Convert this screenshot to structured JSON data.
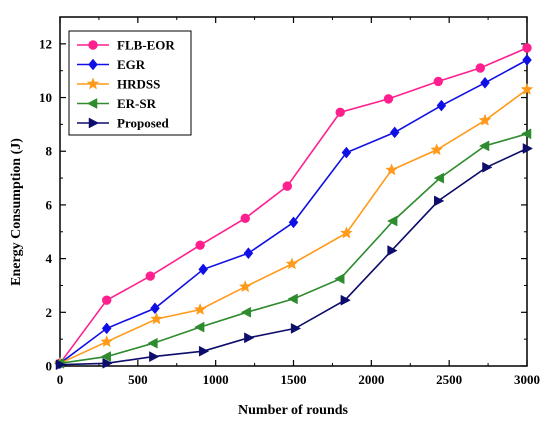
{
  "chart_data": {
    "type": "line",
    "xlabel": "Number of rounds",
    "ylabel": "Energy Consumption (J)",
    "xlim": [
      0,
      3000
    ],
    "ylim": [
      0,
      13
    ],
    "xticks": [
      0,
      500,
      1000,
      1500,
      2000,
      2500,
      3000
    ],
    "yticks": [
      0,
      2,
      4,
      6,
      8,
      10,
      12
    ],
    "grid": false,
    "legend_position": "top-left",
    "series": [
      {
        "name": "FLB-EOR",
        "color": "#ff1f8e",
        "marker": "circle",
        "x": [
          0,
          300,
          580,
          900,
          1190,
          1460,
          1800,
          2110,
          2430,
          2700,
          3000
        ],
        "y": [
          0.1,
          2.45,
          3.35,
          4.5,
          5.5,
          6.7,
          9.45,
          9.95,
          10.6,
          11.1,
          11.85
        ]
      },
      {
        "name": "EGR",
        "color": "#1010e6",
        "marker": "diamond",
        "x": [
          0,
          300,
          610,
          920,
          1210,
          1500,
          1840,
          2150,
          2450,
          2730,
          3000
        ],
        "y": [
          0.1,
          1.4,
          2.15,
          3.6,
          4.2,
          5.35,
          7.95,
          8.7,
          9.7,
          10.55,
          11.4
        ]
      },
      {
        "name": "HRDSS",
        "color": "#ff9a1a",
        "marker": "star",
        "x": [
          0,
          300,
          620,
          900,
          1190,
          1490,
          1840,
          2130,
          2420,
          2730,
          3000
        ],
        "y": [
          0.1,
          0.9,
          1.75,
          2.1,
          2.95,
          3.8,
          4.95,
          7.3,
          8.05,
          9.15,
          10.3
        ]
      },
      {
        "name": "ER-SR",
        "color": "#2e8b2e",
        "marker": "triangle-left",
        "x": [
          0,
          300,
          600,
          900,
          1200,
          1500,
          1800,
          2140,
          2440,
          2730,
          3000
        ],
        "y": [
          0.1,
          0.35,
          0.85,
          1.45,
          2.0,
          2.5,
          3.25,
          5.4,
          7.0,
          8.2,
          8.65
        ]
      },
      {
        "name": "Proposed",
        "color": "#0d0d6b",
        "marker": "triangle-right",
        "x": [
          0,
          300,
          600,
          920,
          1210,
          1510,
          1830,
          2130,
          2430,
          2740,
          3000
        ],
        "y": [
          0.05,
          0.1,
          0.35,
          0.55,
          1.05,
          1.4,
          2.45,
          4.3,
          6.15,
          7.4,
          8.1
        ]
      }
    ]
  }
}
